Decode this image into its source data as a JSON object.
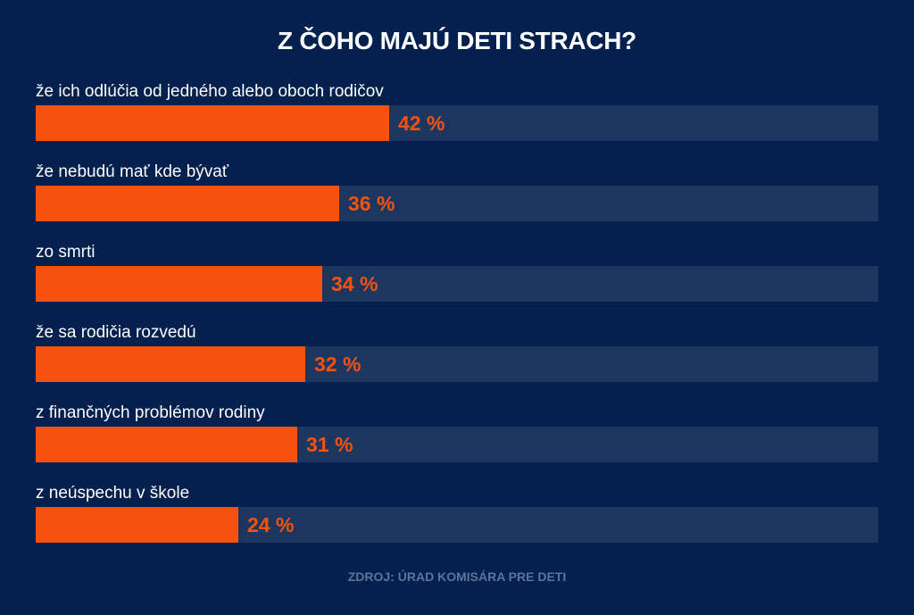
{
  "chart_data": {
    "type": "bar",
    "orientation": "horizontal",
    "title": "Z ČOHO MAJÚ DETI STRACH?",
    "categories": [
      "že ich odlúčia od jedného alebo oboch rodičov",
      "že nebudú mať kde bývať",
      "zo smrti",
      "že sa rodičia rozvedú",
      "z finančných problémov rodiny",
      "z neúspechu v škole"
    ],
    "values": [
      42,
      36,
      34,
      32,
      31,
      24
    ],
    "value_labels": [
      "42 %",
      "36 %",
      "34 %",
      "32 %",
      "31 %",
      "24 %"
    ],
    "unit": "%",
    "xlim": [
      0,
      100
    ],
    "xlabel": "",
    "ylabel": "",
    "grid": false,
    "legend": "none",
    "source": "ZDROJ: ÚRAD KOMISÁRA PRE DETI",
    "colors": {
      "background": "#03204f",
      "bar": "#f6520f",
      "track": "#1d365f",
      "label": "#ffffff",
      "value": "#f6520f",
      "source": "#5d7399"
    }
  }
}
